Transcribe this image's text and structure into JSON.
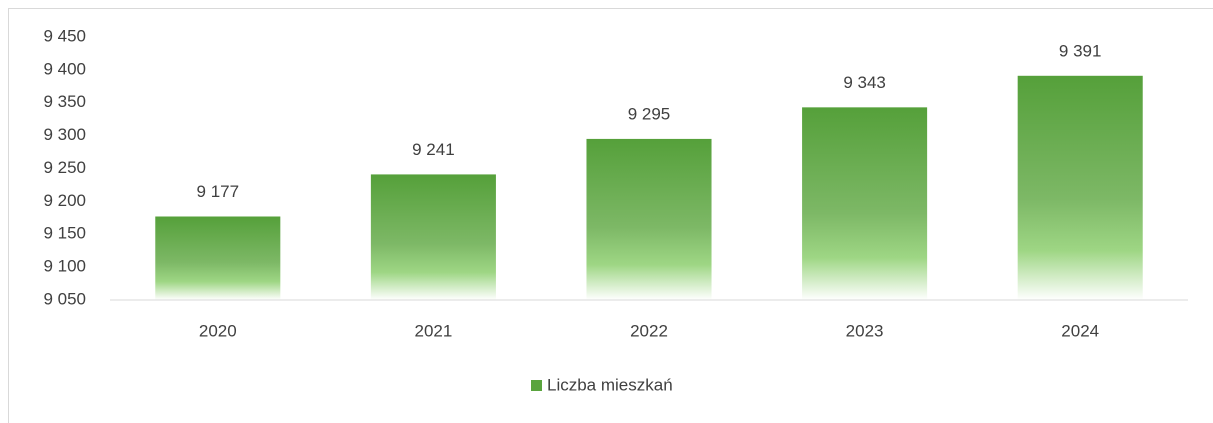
{
  "chart_data": {
    "type": "bar",
    "categories": [
      "2020",
      "2021",
      "2022",
      "2023",
      "2024"
    ],
    "series": [
      {
        "name": "Liczba mieszkań",
        "color": "#5aa43e",
        "values": [
          9177,
          9241,
          9295,
          9343,
          9391
        ],
        "value_labels": [
          "9 177",
          "9 241",
          "9 295",
          "9 343",
          "9 391"
        ]
      }
    ],
    "ylim": [
      9050,
      9450
    ],
    "yticks": [
      {
        "value": 9050,
        "label": "9 050"
      },
      {
        "value": 9100,
        "label": "9 100"
      },
      {
        "value": 9150,
        "label": "9 150"
      },
      {
        "value": 9200,
        "label": "9 200"
      },
      {
        "value": 9250,
        "label": "9 250"
      },
      {
        "value": 9300,
        "label": "9 300"
      },
      {
        "value": 9350,
        "label": "9 350"
      },
      {
        "value": 9400,
        "label": "9 400"
      },
      {
        "value": 9450,
        "label": "9 450"
      }
    ],
    "grid": false,
    "legend": "bottom"
  }
}
